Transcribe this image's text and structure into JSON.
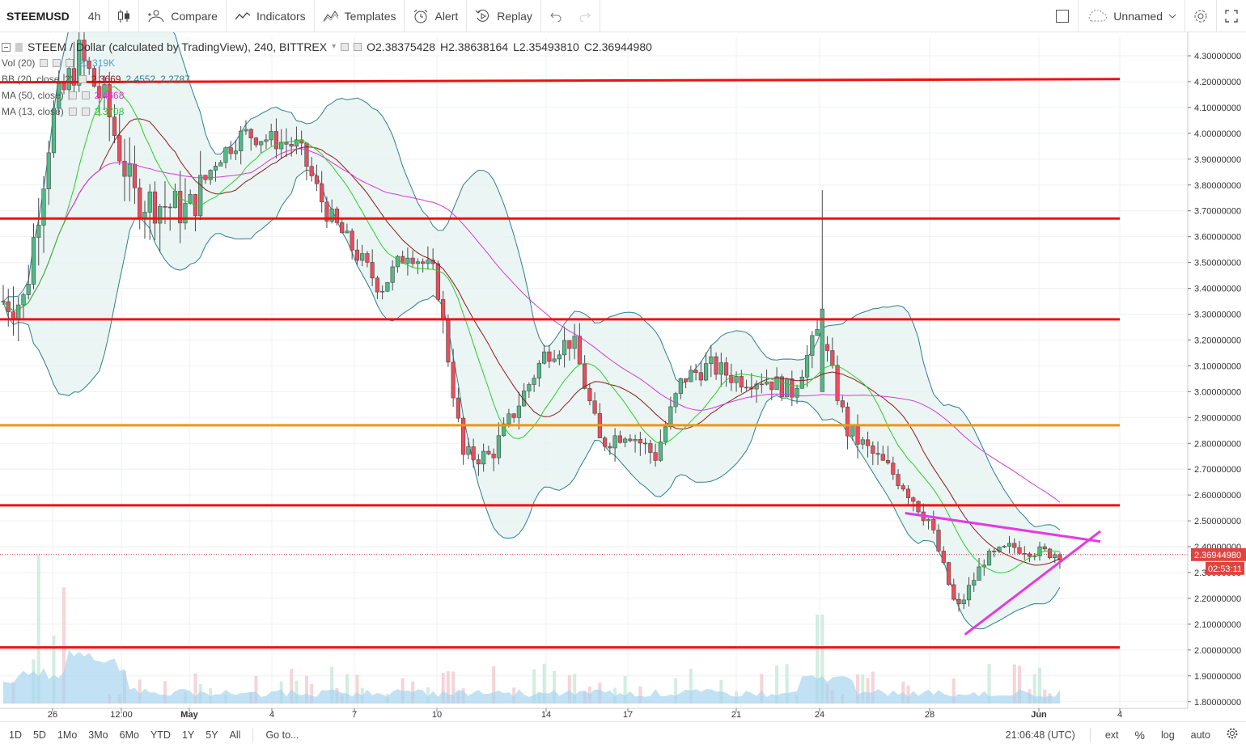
{
  "toolbar": {
    "symbol": "STEEMUSD",
    "interval": "4h",
    "compare": "Compare",
    "indicators": "Indicators",
    "templates": "Templates",
    "alert": "Alert",
    "replay": "Replay",
    "layout_name": "Unnamed"
  },
  "legend": {
    "main_title": "STEEM / Dollar (calculated by TradingView), 240, BITTREX",
    "open": "O2.38375428",
    "high": "H2.38638164",
    "low": "L2.35493810",
    "close": "C2.36944980",
    "vol_label": "Vol (20)",
    "vol_value": "21.319K",
    "bb_label": "BB (20, close, 2)",
    "bb_mid": "2.3669",
    "bb_upper": "2.4552",
    "bb_lower": "2.2787",
    "ma50_label": "MA (50, close)",
    "ma50_value": "2.4668",
    "ma13_label": "MA (13, close)",
    "ma13_value": "2.3708"
  },
  "price_axis": {
    "labels": [
      "4.30000000",
      "4.20000000",
      "4.10000000",
      "4.00000000",
      "3.90000000",
      "3.80000000",
      "3.70000000",
      "3.60000000",
      "3.50000000",
      "3.40000000",
      "3.30000000",
      "3.20000000",
      "3.10000000",
      "3.00000000",
      "2.90000000",
      "2.80000000",
      "2.70000000",
      "2.60000000",
      "2.50000000",
      "2.40000000",
      "2.30000000",
      "2.20000000",
      "2.10000000",
      "2.00000000",
      "1.90000000",
      "1.80000000"
    ],
    "current_price": "2.36944980",
    "countdown": "02:53:11"
  },
  "time_axis": {
    "labels": [
      "26",
      "12:00",
      "May",
      "4",
      "7",
      "10",
      "14",
      "17",
      "21",
      "24",
      "28",
      "Jun",
      "4"
    ]
  },
  "bottom_bar": {
    "ranges": [
      "1D",
      "5D",
      "1Mo",
      "3Mo",
      "6Mo",
      "YTD",
      "1Y",
      "5Y",
      "All"
    ],
    "goto": "Go to...",
    "clock": "21:06:48 (UTC)",
    "ext": "ext",
    "percent": "%",
    "log": "log",
    "auto": "auto"
  },
  "colors": {
    "up": "#53b987",
    "down": "#eb4d5c",
    "bb_band": "#2f7f8a",
    "bb_fill": "#e6f2f1",
    "ma50": "#d63ad6",
    "ma13": "#2ecc2e",
    "bb_mid": "#8b1a1a",
    "level_red": "#ee1111",
    "level_orange": "#f0960e",
    "trend": "#e23be2",
    "volume_area": "#a8d4f0"
  },
  "chart_data": {
    "type": "candlestick",
    "ylim": [
      1.8,
      4.3
    ],
    "horizontal_levels": [
      {
        "price": 4.21,
        "color": "red"
      },
      {
        "price": 3.67,
        "color": "red"
      },
      {
        "price": 3.28,
        "color": "red"
      },
      {
        "price": 2.87,
        "color": "orange"
      },
      {
        "price": 2.56,
        "color": "red"
      },
      {
        "price": 2.01,
        "color": "red"
      }
    ],
    "trendlines": [
      {
        "from": [
          "May 28",
          2.53
        ],
        "to": [
          "Jun 2",
          2.42
        ]
      },
      {
        "from": [
          "May 29",
          2.06
        ],
        "to": [
          "Jun 2",
          2.46
        ]
      }
    ],
    "close_path": [
      {
        "t": "Apr 25",
        "v": 3.35
      },
      {
        "t": "Apr 26",
        "v": 4.05
      },
      {
        "t": "Apr 27",
        "v": 4.3
      },
      {
        "t": "Apr 28",
        "v": 4.1
      },
      {
        "t": "Apr 29",
        "v": 3.75
      },
      {
        "t": "May 1",
        "v": 3.7
      },
      {
        "t": "May 2",
        "v": 3.9
      },
      {
        "t": "May 3",
        "v": 4.0
      },
      {
        "t": "May 5",
        "v": 3.95
      },
      {
        "t": "May 6",
        "v": 3.7
      },
      {
        "t": "May 7",
        "v": 3.55
      },
      {
        "t": "May 8",
        "v": 3.4
      },
      {
        "t": "May 9",
        "v": 3.55
      },
      {
        "t": "May 10",
        "v": 3.45
      },
      {
        "t": "May 11",
        "v": 2.75
      },
      {
        "t": "May 12",
        "v": 2.75
      },
      {
        "t": "May 13",
        "v": 2.95
      },
      {
        "t": "May 14",
        "v": 3.15
      },
      {
        "t": "May 15",
        "v": 3.2
      },
      {
        "t": "May 16",
        "v": 2.8
      },
      {
        "t": "May 17",
        "v": 2.85
      },
      {
        "t": "May 18",
        "v": 2.75
      },
      {
        "t": "May 19",
        "v": 3.05
      },
      {
        "t": "May 20",
        "v": 3.1
      },
      {
        "t": "May 21",
        "v": 3.05
      },
      {
        "t": "May 22",
        "v": 3.05
      },
      {
        "t": "May 23",
        "v": 3.0
      },
      {
        "t": "May 24",
        "v": 3.25
      },
      {
        "t": "May 25",
        "v": 2.85
      },
      {
        "t": "May 26",
        "v": 2.75
      },
      {
        "t": "May 27",
        "v": 2.65
      },
      {
        "t": "May 28",
        "v": 2.5
      },
      {
        "t": "May 29",
        "v": 2.15
      },
      {
        "t": "May 30",
        "v": 2.35
      },
      {
        "t": "May 31",
        "v": 2.4
      },
      {
        "t": "Jun 1",
        "v": 2.38
      },
      {
        "t": "Jun 2",
        "v": 2.37
      }
    ]
  }
}
